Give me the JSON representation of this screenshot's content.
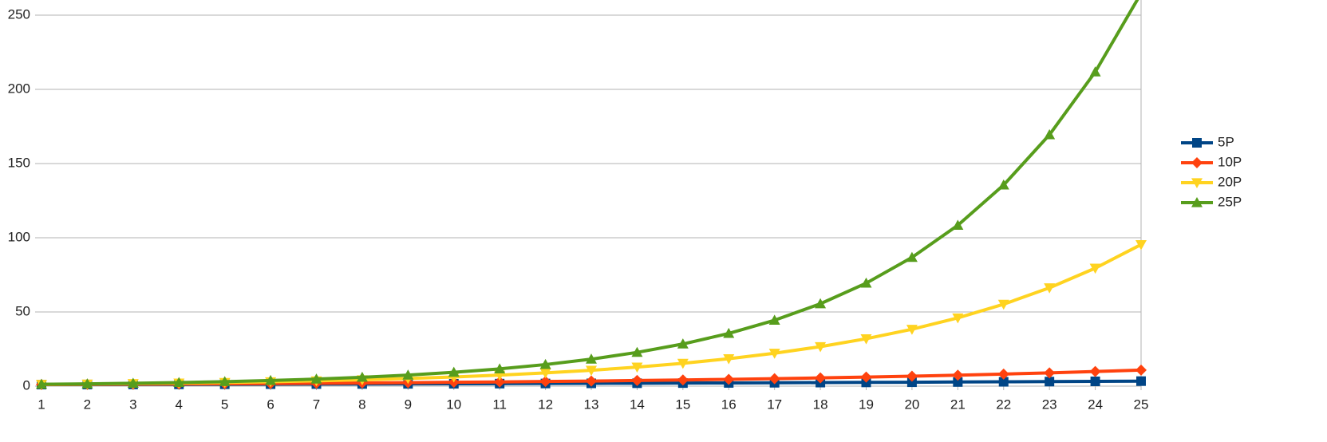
{
  "chart_data": {
    "type": "line",
    "x": [
      1,
      2,
      3,
      4,
      5,
      6,
      7,
      8,
      9,
      10,
      11,
      12,
      13,
      14,
      15,
      16,
      17,
      18,
      19,
      20,
      21,
      22,
      23,
      24,
      25
    ],
    "xlim": [
      1,
      25
    ],
    "ylim": [
      0,
      260
    ],
    "yticks": [
      0,
      50,
      100,
      150,
      200,
      250
    ],
    "grid": true,
    "legend": "right",
    "series": [
      {
        "name": "5P",
        "color": "#004586",
        "marker": "square",
        "values": [
          1.05,
          1.1,
          1.16,
          1.22,
          1.28,
          1.34,
          1.41,
          1.48,
          1.55,
          1.63,
          1.71,
          1.8,
          1.89,
          1.98,
          2.08,
          2.18,
          2.29,
          2.41,
          2.53,
          2.65,
          2.79,
          2.93,
          3.07,
          3.23,
          3.39
        ]
      },
      {
        "name": "10P",
        "color": "#ff420e",
        "marker": "diamond",
        "values": [
          1.1,
          1.21,
          1.33,
          1.46,
          1.61,
          1.77,
          1.95,
          2.14,
          2.36,
          2.59,
          2.85,
          3.14,
          3.45,
          3.8,
          4.18,
          4.59,
          5.05,
          5.56,
          6.12,
          6.73,
          7.4,
          8.14,
          8.95,
          9.85,
          10.83
        ]
      },
      {
        "name": "20P",
        "color": "#ffd320",
        "marker": "triangle-down",
        "values": [
          1.2,
          1.44,
          1.73,
          2.07,
          2.49,
          2.99,
          3.58,
          4.3,
          5.16,
          6.19,
          7.43,
          8.92,
          10.7,
          12.84,
          15.41,
          18.49,
          22.19,
          26.62,
          31.95,
          38.34,
          46.01,
          55.21,
          66.25,
          79.5,
          95.4
        ]
      },
      {
        "name": "25P",
        "color": "#579d1c",
        "marker": "triangle-up",
        "values": [
          1.25,
          1.56,
          1.95,
          2.44,
          3.05,
          3.81,
          4.77,
          5.96,
          7.45,
          9.31,
          11.64,
          14.55,
          18.19,
          22.74,
          28.42,
          35.53,
          44.41,
          55.51,
          69.39,
          86.74,
          108.42,
          135.53,
          169.41,
          211.76,
          264.7
        ]
      }
    ]
  }
}
